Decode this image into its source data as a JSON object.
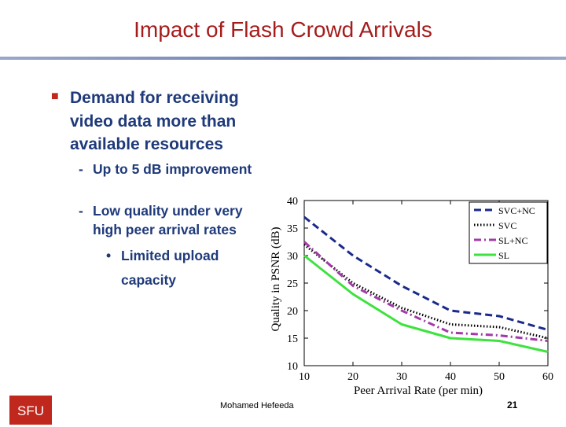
{
  "slide": {
    "title": "Impact of Flash Crowd Arrivals",
    "bullets": {
      "main": "Demand for receiving video data more than available resources",
      "sub1": "Up to 5 dB improvement",
      "sub2": "Low quality under very high peer arrival rates",
      "subsub1": "Limited upload capacity"
    },
    "footer_author": "Mohamed Hefeeda",
    "page_number": "21",
    "logo_text": "SFU",
    "accent_color": "#a51c1c"
  },
  "chart_data": {
    "type": "line",
    "xlabel": "Peer Arrival Rate (per min)",
    "ylabel": "Quality in PSNR (dB)",
    "xlim": [
      10,
      60
    ],
    "ylim": [
      10,
      40
    ],
    "xticks": [
      10,
      20,
      30,
      40,
      50,
      60
    ],
    "yticks": [
      10,
      15,
      20,
      25,
      30,
      35,
      40
    ],
    "legend_position": "top-right",
    "series": [
      {
        "name": "SVC+NC",
        "color": "#1a2a8a",
        "dash": "dashed",
        "x": [
          10,
          20,
          30,
          40,
          50,
          60
        ],
        "y": [
          37.0,
          30.0,
          24.5,
          20.0,
          19.0,
          16.5
        ]
      },
      {
        "name": "SVC",
        "color": "#000000",
        "dash": "dotted",
        "x": [
          10,
          20,
          30,
          40,
          50,
          60
        ],
        "y": [
          32.0,
          25.0,
          20.5,
          17.5,
          17.0,
          15.0
        ]
      },
      {
        "name": "SL+NC",
        "color": "#a33aa8",
        "dash": "dashdot",
        "x": [
          10,
          20,
          30,
          40,
          50,
          60
        ],
        "y": [
          32.5,
          24.5,
          20.0,
          16.0,
          15.5,
          14.5
        ]
      },
      {
        "name": "SL",
        "color": "#3ee23e",
        "dash": "solid",
        "x": [
          10,
          20,
          30,
          40,
          50,
          60
        ],
        "y": [
          30.0,
          23.0,
          17.5,
          15.0,
          14.5,
          12.5
        ]
      }
    ]
  }
}
